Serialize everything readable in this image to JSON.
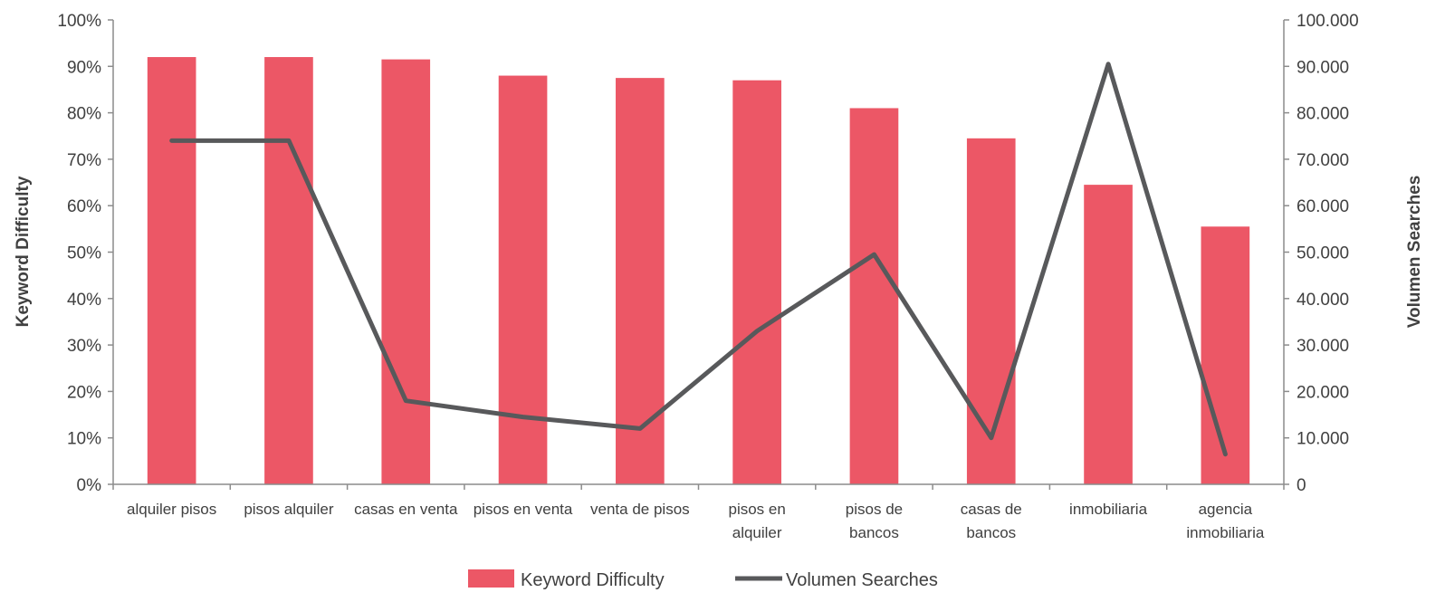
{
  "chart_data": {
    "type": "bar",
    "categories": [
      [
        "alquiler pisos"
      ],
      [
        "pisos alquiler"
      ],
      [
        "casas en venta"
      ],
      [
        "pisos en venta"
      ],
      [
        "venta de pisos"
      ],
      [
        "pisos en",
        "alquiler"
      ],
      [
        "pisos de",
        "bancos"
      ],
      [
        "casas de",
        "bancos"
      ],
      [
        "inmobiliaria"
      ],
      [
        "agencia",
        "inmobiliaria"
      ]
    ],
    "series": [
      {
        "name": "Keyword Difficulty",
        "type": "bar",
        "axis": "left",
        "color": "#ec5766",
        "values": [
          92,
          92,
          91.5,
          88,
          87.5,
          87,
          81,
          74.5,
          64.5,
          55.5
        ]
      },
      {
        "name": "Volumen Searches",
        "type": "line",
        "axis": "right",
        "color": "#58595b",
        "values": [
          74000,
          74000,
          18000,
          14500,
          12000,
          33000,
          49500,
          10000,
          90500,
          6500
        ]
      }
    ],
    "ylabel": "Keyword Difficulty",
    "y2label": "Volumen Searches",
    "ylim": [
      0,
      100
    ],
    "y2lim": [
      0,
      100000
    ],
    "yticks": [
      "0%",
      "10%",
      "20%",
      "30%",
      "40%",
      "50%",
      "60%",
      "70%",
      "80%",
      "90%",
      "100%"
    ],
    "y2ticks": [
      "0",
      "10.000",
      "20.000",
      "30.000",
      "40.000",
      "50.000",
      "60.000",
      "70.000",
      "80.000",
      "90.000",
      "100.000"
    ],
    "grid": false,
    "legend": "bottom-center"
  }
}
